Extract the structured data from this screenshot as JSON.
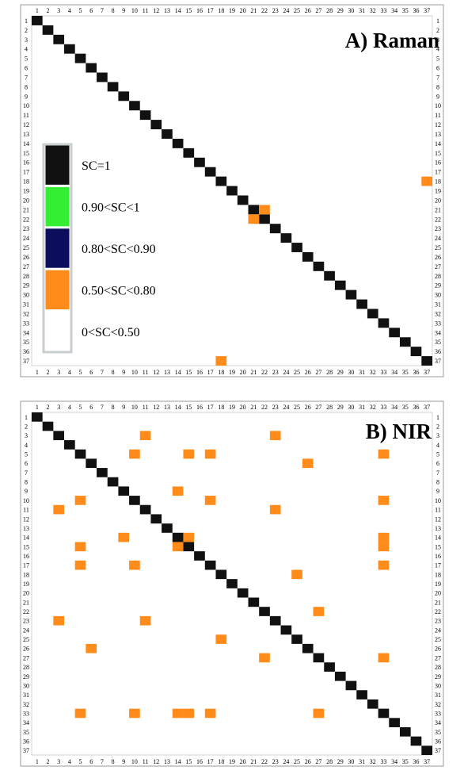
{
  "chart_data": [
    {
      "type": "heatmap",
      "title": "A) Raman",
      "x": [
        1,
        2,
        3,
        4,
        5,
        6,
        7,
        8,
        9,
        10,
        11,
        12,
        13,
        14,
        15,
        16,
        17,
        18,
        19,
        20,
        21,
        22,
        23,
        24,
        25,
        26,
        27,
        28,
        29,
        30,
        31,
        32,
        33,
        34,
        35,
        36,
        37
      ],
      "y": [
        1,
        2,
        3,
        4,
        5,
        6,
        7,
        8,
        9,
        10,
        11,
        12,
        13,
        14,
        15,
        16,
        17,
        18,
        19,
        20,
        21,
        22,
        23,
        24,
        25,
        26,
        27,
        28,
        29,
        30,
        31,
        32,
        33,
        34,
        35,
        36,
        37
      ],
      "diagonal_value": "SC=1",
      "cells": [
        {
          "row": 18,
          "col": 37,
          "class": "0.50<SC<0.80"
        },
        {
          "row": 21,
          "col": 22,
          "class": "0.50<SC<0.80"
        },
        {
          "row": 22,
          "col": 21,
          "class": "0.50<SC<0.80"
        },
        {
          "row": 37,
          "col": 18,
          "class": "0.50<SC<0.80"
        }
      ],
      "legend": {
        "placement": "left-middle",
        "entries": [
          {
            "label": "SC=1",
            "color": "#111111"
          },
          {
            "label": "0.90<SC<1",
            "color": "#33ee33"
          },
          {
            "label": "0.80<SC<0.90",
            "color": "#0d0d5e"
          },
          {
            "label": "0.50<SC<0.80",
            "color": "#ff8c1a"
          },
          {
            "label": "0<SC<0.50",
            "color": "#ffffff"
          }
        ]
      }
    },
    {
      "type": "heatmap",
      "title": "B) NIR",
      "x": [
        1,
        2,
        3,
        4,
        5,
        6,
        7,
        8,
        9,
        10,
        11,
        12,
        13,
        14,
        15,
        16,
        17,
        18,
        19,
        20,
        21,
        22,
        23,
        24,
        25,
        26,
        27,
        28,
        29,
        30,
        31,
        32,
        33,
        34,
        35,
        36,
        37
      ],
      "y": [
        1,
        2,
        3,
        4,
        5,
        6,
        7,
        8,
        9,
        10,
        11,
        12,
        13,
        14,
        15,
        16,
        17,
        18,
        19,
        20,
        21,
        22,
        23,
        24,
        25,
        26,
        27,
        28,
        29,
        30,
        31,
        32,
        33,
        34,
        35,
        36,
        37
      ],
      "diagonal_value": "SC=1",
      "cells": [
        {
          "row": 3,
          "col": 11,
          "class": "0.50<SC<0.80"
        },
        {
          "row": 3,
          "col": 23,
          "class": "0.50<SC<0.80"
        },
        {
          "row": 5,
          "col": 10,
          "class": "0.50<SC<0.80"
        },
        {
          "row": 5,
          "col": 15,
          "class": "0.50<SC<0.80"
        },
        {
          "row": 5,
          "col": 17,
          "class": "0.50<SC<0.80"
        },
        {
          "row": 5,
          "col": 33,
          "class": "0.50<SC<0.80"
        },
        {
          "row": 6,
          "col": 26,
          "class": "0.50<SC<0.80"
        },
        {
          "row": 9,
          "col": 14,
          "class": "0.50<SC<0.80"
        },
        {
          "row": 10,
          "col": 5,
          "class": "0.50<SC<0.80"
        },
        {
          "row": 10,
          "col": 17,
          "class": "0.50<SC<0.80"
        },
        {
          "row": 10,
          "col": 33,
          "class": "0.50<SC<0.80"
        },
        {
          "row": 11,
          "col": 3,
          "class": "0.50<SC<0.80"
        },
        {
          "row": 11,
          "col": 23,
          "class": "0.50<SC<0.80"
        },
        {
          "row": 14,
          "col": 9,
          "class": "0.50<SC<0.80"
        },
        {
          "row": 14,
          "col": 15,
          "class": "0.50<SC<0.80"
        },
        {
          "row": 14,
          "col": 33,
          "class": "0.50<SC<0.80"
        },
        {
          "row": 15,
          "col": 5,
          "class": "0.50<SC<0.80"
        },
        {
          "row": 15,
          "col": 14,
          "class": "0.50<SC<0.80"
        },
        {
          "row": 15,
          "col": 33,
          "class": "0.50<SC<0.80"
        },
        {
          "row": 17,
          "col": 5,
          "class": "0.50<SC<0.80"
        },
        {
          "row": 17,
          "col": 10,
          "class": "0.50<SC<0.80"
        },
        {
          "row": 17,
          "col": 33,
          "class": "0.50<SC<0.80"
        },
        {
          "row": 18,
          "col": 25,
          "class": "0.50<SC<0.80"
        },
        {
          "row": 22,
          "col": 27,
          "class": "0.50<SC<0.80"
        },
        {
          "row": 23,
          "col": 3,
          "class": "0.50<SC<0.80"
        },
        {
          "row": 23,
          "col": 11,
          "class": "0.50<SC<0.80"
        },
        {
          "row": 25,
          "col": 18,
          "class": "0.50<SC<0.80"
        },
        {
          "row": 26,
          "col": 6,
          "class": "0.50<SC<0.80"
        },
        {
          "row": 27,
          "col": 22,
          "class": "0.50<SC<0.80"
        },
        {
          "row": 27,
          "col": 33,
          "class": "0.50<SC<0.80"
        },
        {
          "row": 33,
          "col": 5,
          "class": "0.50<SC<0.80"
        },
        {
          "row": 33,
          "col": 10,
          "class": "0.50<SC<0.80"
        },
        {
          "row": 33,
          "col": 14,
          "class": "0.50<SC<0.80"
        },
        {
          "row": 33,
          "col": 15,
          "class": "0.50<SC<0.80"
        },
        {
          "row": 33,
          "col": 17,
          "class": "0.50<SC<0.80"
        },
        {
          "row": 33,
          "col": 27,
          "class": "0.50<SC<0.80"
        }
      ]
    }
  ]
}
